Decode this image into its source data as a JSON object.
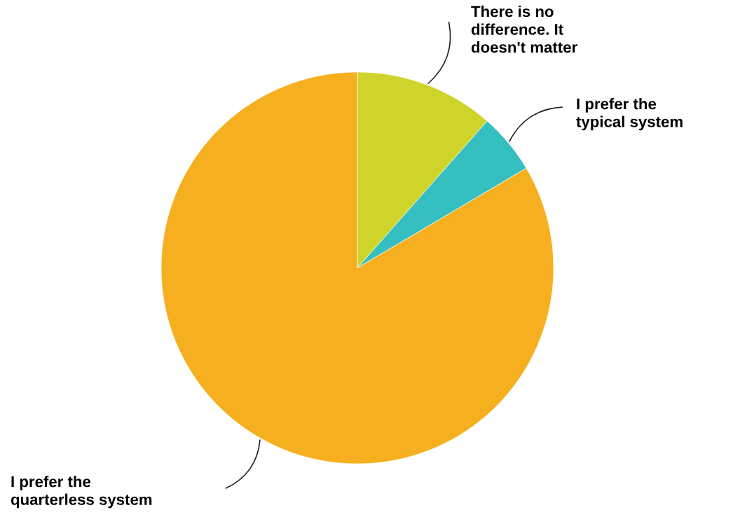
{
  "chart_data": {
    "type": "pie",
    "categories": [
      "There is no\ndifference. It\ndoesn't matter",
      "I prefer the\ntypical system",
      "I prefer the\nquarterless system"
    ],
    "values": [
      11.5,
      5,
      83.5
    ],
    "colors": [
      "#cfd42a",
      "#35bfc0",
      "#f6af1e"
    ]
  }
}
